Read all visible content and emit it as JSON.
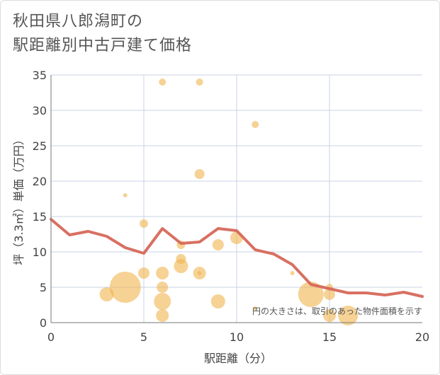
{
  "title_lines": [
    "秋田県八郎潟町の",
    "駅距離別中古戸建て価格"
  ],
  "chart_data": {
    "type": "scatter",
    "title": "秋田県八郎潟町の駅距離別中古戸建て価格",
    "xlabel": "駅距離（分）",
    "ylabel": "坪（3.3㎡）単価（万円）",
    "xlim": [
      0,
      20
    ],
    "ylim": [
      0,
      35
    ],
    "xticks": [
      0,
      5,
      10,
      15,
      20
    ],
    "yticks": [
      0,
      5,
      10,
      15,
      20,
      25,
      30,
      35
    ],
    "grid": true,
    "note": "円の大きさは、取引のあった物件面積を示す",
    "colors": {
      "bubble": "#f0b44e",
      "line": "#d6685a",
      "grid": "#c8d3e6",
      "axis": "#777777"
    },
    "bubbles": [
      {
        "x": 3,
        "y": 4,
        "size": 10
      },
      {
        "x": 4,
        "y": 5,
        "size": 22
      },
      {
        "x": 4,
        "y": 18,
        "size": 3
      },
      {
        "x": 5,
        "y": 7,
        "size": 8
      },
      {
        "x": 5,
        "y": 14,
        "size": 6
      },
      {
        "x": 6,
        "y": 1,
        "size": 9
      },
      {
        "x": 6,
        "y": 3,
        "size": 12
      },
      {
        "x": 6,
        "y": 5,
        "size": 8
      },
      {
        "x": 6,
        "y": 7,
        "size": 9
      },
      {
        "x": 6,
        "y": 34,
        "size": 5
      },
      {
        "x": 7,
        "y": 8,
        "size": 10
      },
      {
        "x": 7,
        "y": 9,
        "size": 7
      },
      {
        "x": 7,
        "y": 11,
        "size": 6
      },
      {
        "x": 8,
        "y": 7,
        "size": 9
      },
      {
        "x": 8,
        "y": 7,
        "size": 3
      },
      {
        "x": 8,
        "y": 21,
        "size": 7
      },
      {
        "x": 8,
        "y": 34,
        "size": 5
      },
      {
        "x": 9,
        "y": 3,
        "size": 10
      },
      {
        "x": 9,
        "y": 11,
        "size": 8
      },
      {
        "x": 10,
        "y": 12,
        "size": 9
      },
      {
        "x": 11,
        "y": 2,
        "size": 3
      },
      {
        "x": 11,
        "y": 28,
        "size": 5
      },
      {
        "x": 13,
        "y": 7,
        "size": 3
      },
      {
        "x": 14,
        "y": 4,
        "size": 18
      },
      {
        "x": 15,
        "y": 1,
        "size": 9
      },
      {
        "x": 15,
        "y": 4,
        "size": 8
      },
      {
        "x": 15,
        "y": 5,
        "size": 5
      },
      {
        "x": 16,
        "y": 1,
        "size": 14
      }
    ],
    "line": {
      "x": [
        0,
        1,
        2,
        3,
        4,
        5,
        6,
        7,
        8,
        9,
        10,
        11,
        12,
        13,
        14,
        15,
        16,
        17,
        18,
        19,
        20
      ],
      "y": [
        14.6,
        12.4,
        12.9,
        12.2,
        10.6,
        9.8,
        13.3,
        11.2,
        11.4,
        13.3,
        13.0,
        10.3,
        9.7,
        8.2,
        5.4,
        4.8,
        4.2,
        4.2,
        3.9,
        4.3,
        3.7
      ]
    }
  }
}
